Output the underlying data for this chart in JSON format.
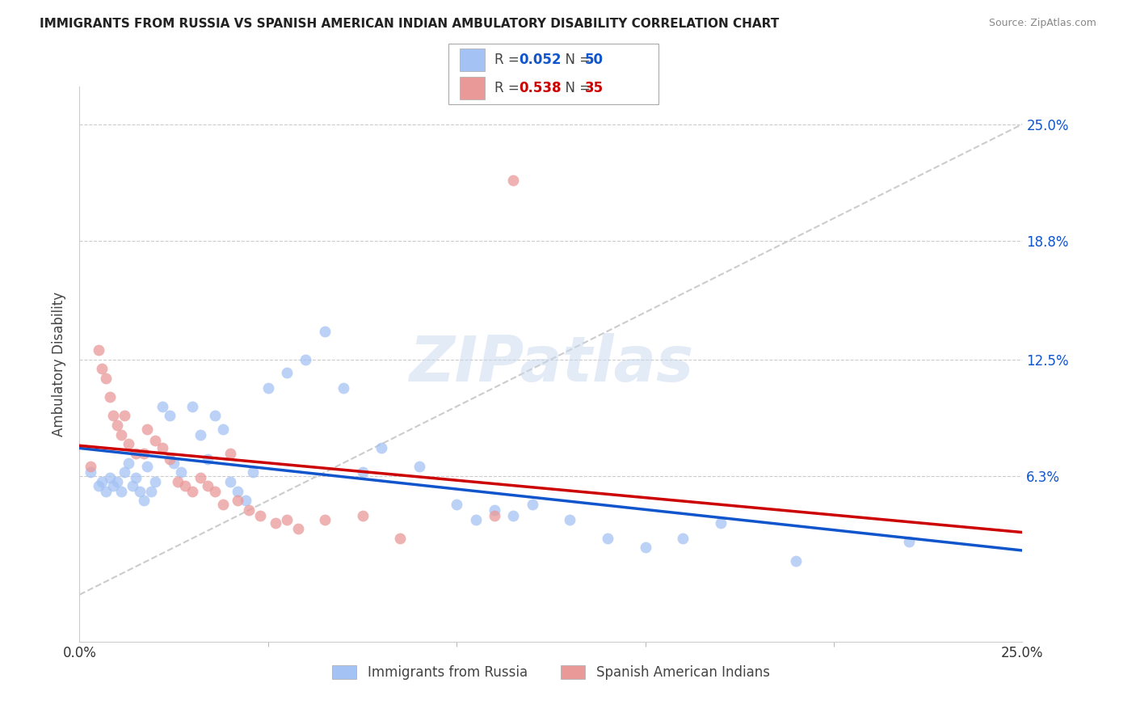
{
  "title": "IMMIGRANTS FROM RUSSIA VS SPANISH AMERICAN INDIAN AMBULATORY DISABILITY CORRELATION CHART",
  "source": "Source: ZipAtlas.com",
  "ylabel": "Ambulatory Disability",
  "xlim": [
    0.0,
    0.25
  ],
  "ylim": [
    -0.025,
    0.27
  ],
  "ytick_vals": [
    0.063,
    0.125,
    0.188,
    0.25
  ],
  "ytick_labels": [
    "6.3%",
    "12.5%",
    "18.8%",
    "25.0%"
  ],
  "xtick_vals": [
    0.0,
    0.25
  ],
  "xtick_labels": [
    "0.0%",
    "25.0%"
  ],
  "legend_r1": "0.052",
  "legend_n1": "50",
  "legend_r2": "0.538",
  "legend_n2": "35",
  "blue_color": "#a4c2f4",
  "pink_color": "#ea9999",
  "line_blue": "#1155cc",
  "line_pink": "#cc0000",
  "line_diag_color": "#cccccc",
  "watermark": "ZIPatlas",
  "blue_scatter_x": [
    0.003,
    0.005,
    0.006,
    0.007,
    0.008,
    0.009,
    0.01,
    0.011,
    0.012,
    0.013,
    0.014,
    0.015,
    0.016,
    0.017,
    0.018,
    0.019,
    0.02,
    0.022,
    0.024,
    0.025,
    0.027,
    0.03,
    0.032,
    0.034,
    0.036,
    0.038,
    0.04,
    0.042,
    0.044,
    0.046,
    0.05,
    0.055,
    0.06,
    0.065,
    0.07,
    0.075,
    0.08,
    0.09,
    0.1,
    0.105,
    0.11,
    0.115,
    0.12,
    0.13,
    0.14,
    0.15,
    0.16,
    0.17,
    0.19,
    0.22
  ],
  "blue_scatter_y": [
    0.065,
    0.058,
    0.06,
    0.055,
    0.062,
    0.058,
    0.06,
    0.055,
    0.065,
    0.07,
    0.058,
    0.062,
    0.055,
    0.05,
    0.068,
    0.055,
    0.06,
    0.1,
    0.095,
    0.07,
    0.065,
    0.1,
    0.085,
    0.072,
    0.095,
    0.088,
    0.06,
    0.055,
    0.05,
    0.065,
    0.11,
    0.118,
    0.125,
    0.14,
    0.11,
    0.065,
    0.078,
    0.068,
    0.048,
    0.04,
    0.045,
    0.042,
    0.048,
    0.04,
    0.03,
    0.025,
    0.03,
    0.038,
    0.018,
    0.028
  ],
  "pink_scatter_x": [
    0.003,
    0.005,
    0.006,
    0.007,
    0.008,
    0.009,
    0.01,
    0.011,
    0.012,
    0.013,
    0.015,
    0.017,
    0.018,
    0.02,
    0.022,
    0.024,
    0.026,
    0.028,
    0.03,
    0.032,
    0.034,
    0.036,
    0.038,
    0.04,
    0.042,
    0.045,
    0.048,
    0.052,
    0.055,
    0.058,
    0.065,
    0.075,
    0.085,
    0.11,
    0.115
  ],
  "pink_scatter_y": [
    0.068,
    0.13,
    0.12,
    0.115,
    0.105,
    0.095,
    0.09,
    0.085,
    0.095,
    0.08,
    0.075,
    0.075,
    0.088,
    0.082,
    0.078,
    0.072,
    0.06,
    0.058,
    0.055,
    0.062,
    0.058,
    0.055,
    0.048,
    0.075,
    0.05,
    0.045,
    0.042,
    0.038,
    0.04,
    0.035,
    0.04,
    0.042,
    0.03,
    0.042,
    0.22
  ]
}
